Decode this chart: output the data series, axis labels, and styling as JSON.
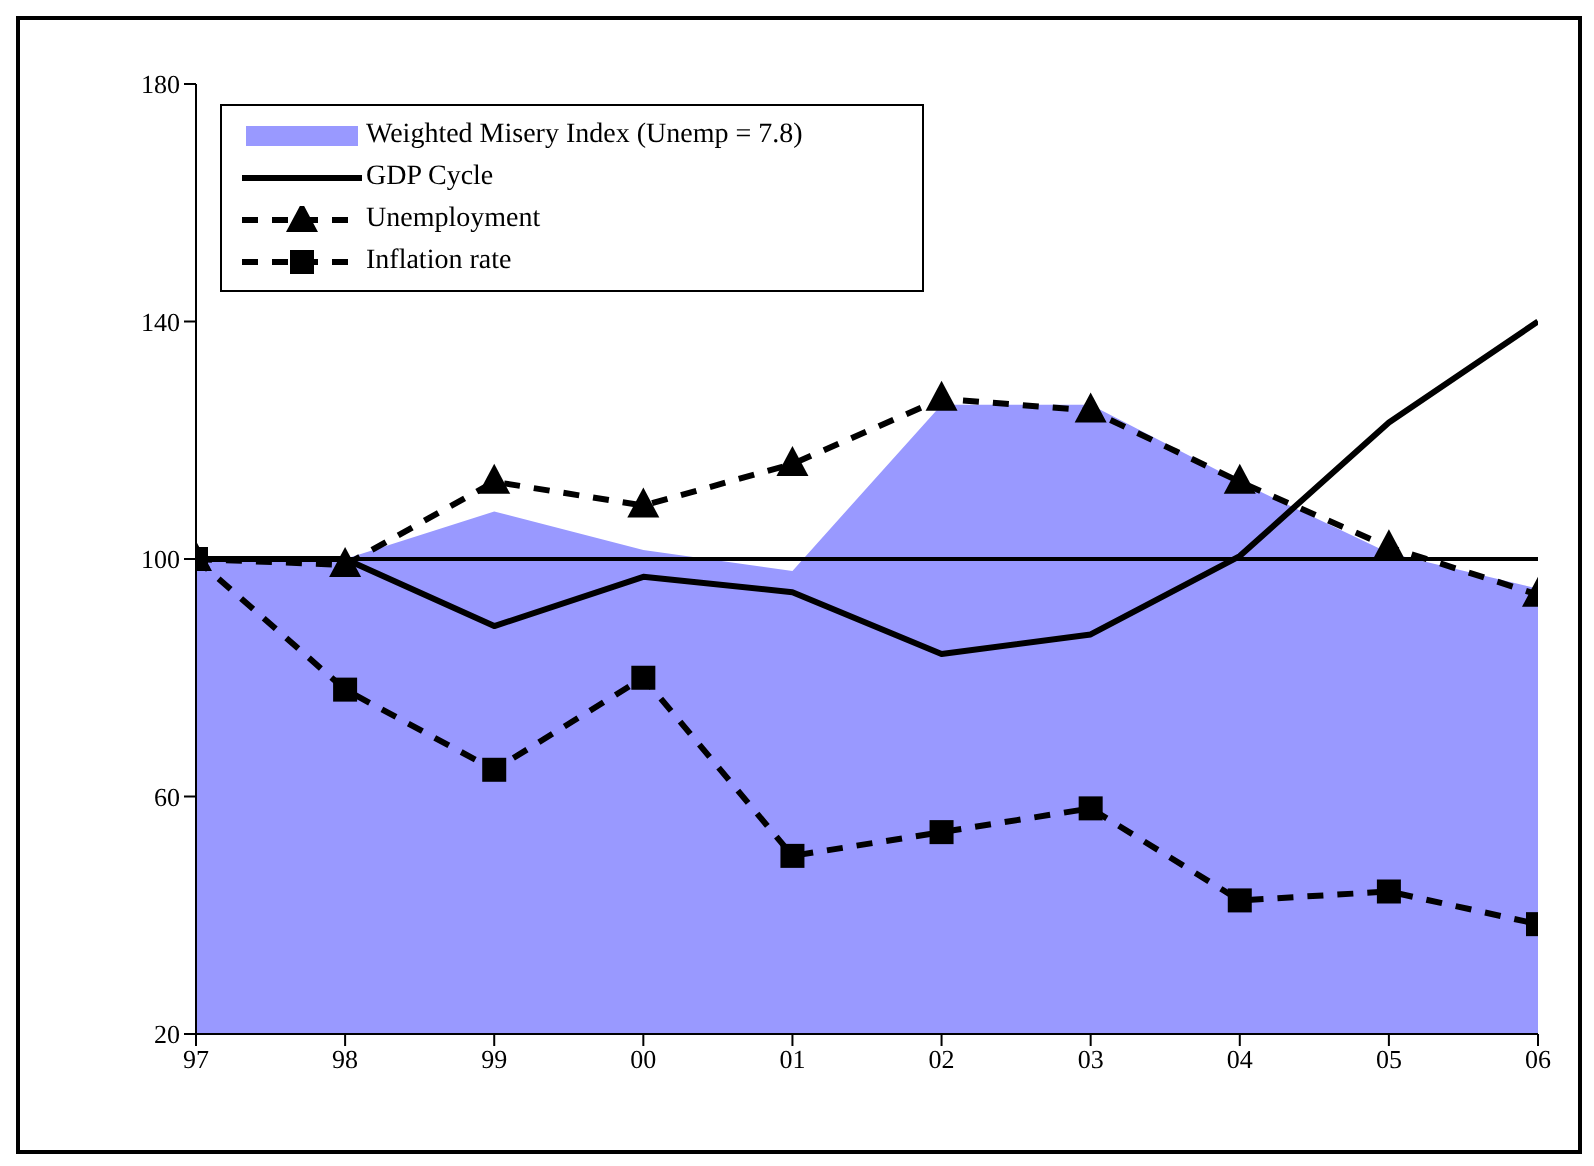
{
  "chart_data": {
    "type": "line",
    "categories": [
      "97",
      "98",
      "99",
      "00",
      "01",
      "02",
      "03",
      "04",
      "05",
      "06"
    ],
    "series": [
      {
        "name": "Weighted Misery Index (Unemp = 7.8)",
        "type": "area",
        "color": "#9999ff",
        "values": [
          100,
          100,
          108,
          101.5,
          98,
          126,
          126,
          113,
          101,
          95
        ]
      },
      {
        "name": "GDP Cycle",
        "color": "#000000",
        "line_style": "solid",
        "marker": "none",
        "values": [
          100,
          100,
          88.7,
          97,
          94.4,
          84,
          87.3,
          100.5,
          123,
          140
        ]
      },
      {
        "name": "Unemployment",
        "color": "#000000",
        "line_style": "dashed",
        "marker": "triangle",
        "values": [
          100,
          99,
          113,
          109,
          116,
          127,
          125,
          113,
          102,
          94
        ]
      },
      {
        "name": "Inflation rate",
        "color": "#000000",
        "line_style": "dashed",
        "marker": "square",
        "values": [
          100,
          78,
          64.5,
          80,
          50,
          54,
          58,
          42.5,
          44,
          38.5
        ]
      }
    ],
    "ylim": [
      20,
      180
    ],
    "yticks": [
      20,
      60,
      100,
      140,
      180
    ],
    "grid": false,
    "legend": "top left",
    "ref_lines": [
      {
        "axis": "y",
        "value": 100,
        "color": "#000000"
      }
    ]
  }
}
